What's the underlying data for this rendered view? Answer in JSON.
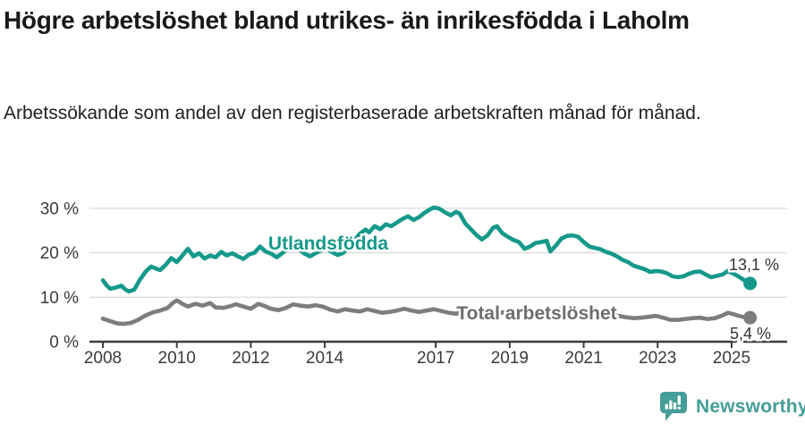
{
  "header": {
    "title": "Högre arbetslöshet bland utrikes- än inrikesfödda i Laholm",
    "subtitle": "Arbetssökande som andel av den registerbaserade arbetskraften månad för månad."
  },
  "branding": {
    "logo_text": "Newsworthy",
    "logo_icon": "newsworthy-bubble-chart-icon",
    "color": "#459e98"
  },
  "chart_data": {
    "type": "line",
    "title": "Högre arbetslöshet bland utrikes- än inrikesfödda i Laholm",
    "subtitle": "Arbetssökande som andel av den registerbaserade arbetskraften månad för månad.",
    "grid": "horizontal-only",
    "legend_position": "inline-labels-on-lines",
    "colors": {
      "grid": "#dcdcdc",
      "axis": "#3c3c3c",
      "tick_text": "#3b3b3b",
      "value_label_text": "#333333"
    },
    "x_axis": {
      "ticks": [
        2008,
        2010,
        2012,
        2014,
        2017,
        2019,
        2021,
        2023,
        2025
      ],
      "range_years": [
        2007.65,
        2026.5
      ]
    },
    "y_axis": {
      "tick_values": [
        0,
        10,
        20,
        30
      ],
      "tick_labels": [
        "0 %",
        "10 %",
        "20 %",
        "30 %"
      ],
      "ylim": [
        0,
        33
      ],
      "unit": "%"
    },
    "series": [
      {
        "id": "utlandsfodda",
        "name": "Utlandsfödda",
        "color": "#14998a",
        "label_color": "#14998a",
        "end_label": "13,1 %",
        "end_value": 13.1,
        "points": [
          [
            2008.0,
            13.8
          ],
          [
            2008.1,
            12.7
          ],
          [
            2008.2,
            11.9
          ],
          [
            2008.35,
            12.2
          ],
          [
            2008.5,
            12.6
          ],
          [
            2008.6,
            11.8
          ],
          [
            2008.7,
            11.3
          ],
          [
            2008.85,
            11.7
          ],
          [
            2009.0,
            13.9
          ],
          [
            2009.15,
            15.7
          ],
          [
            2009.3,
            16.9
          ],
          [
            2009.45,
            16.4
          ],
          [
            2009.55,
            16.1
          ],
          [
            2009.7,
            17.3
          ],
          [
            2009.85,
            18.8
          ],
          [
            2010.0,
            17.9
          ],
          [
            2010.15,
            19.4
          ],
          [
            2010.3,
            20.9
          ],
          [
            2010.45,
            19.2
          ],
          [
            2010.6,
            19.9
          ],
          [
            2010.75,
            18.7
          ],
          [
            2010.9,
            19.4
          ],
          [
            2011.05,
            19.0
          ],
          [
            2011.2,
            20.2
          ],
          [
            2011.35,
            19.4
          ],
          [
            2011.5,
            19.9
          ],
          [
            2011.65,
            19.2
          ],
          [
            2011.8,
            18.6
          ],
          [
            2011.95,
            19.6
          ],
          [
            2012.1,
            20.0
          ],
          [
            2012.25,
            21.4
          ],
          [
            2012.4,
            20.3
          ],
          [
            2012.55,
            19.8
          ],
          [
            2012.7,
            19.0
          ],
          [
            2012.85,
            19.9
          ],
          [
            2013.0,
            20.9
          ],
          [
            2013.15,
            21.7
          ],
          [
            2013.3,
            20.9
          ],
          [
            2013.45,
            19.8
          ],
          [
            2013.6,
            19.2
          ],
          [
            2013.75,
            19.9
          ],
          [
            2013.9,
            20.5
          ],
          [
            2014.05,
            21.0
          ],
          [
            2014.2,
            20.1
          ],
          [
            2014.35,
            19.5
          ],
          [
            2014.5,
            20.0
          ],
          [
            2014.65,
            21.3
          ],
          [
            2014.8,
            22.8
          ],
          [
            2014.95,
            24.3
          ],
          [
            2015.1,
            25.2
          ],
          [
            2015.2,
            24.6
          ],
          [
            2015.35,
            26.0
          ],
          [
            2015.5,
            25.3
          ],
          [
            2015.65,
            26.4
          ],
          [
            2015.8,
            26.0
          ],
          [
            2015.95,
            26.8
          ],
          [
            2016.1,
            27.6
          ],
          [
            2016.25,
            28.2
          ],
          [
            2016.4,
            27.4
          ],
          [
            2016.55,
            28.0
          ],
          [
            2016.7,
            29.0
          ],
          [
            2016.85,
            29.8
          ],
          [
            2016.95,
            30.2
          ],
          [
            2017.1,
            29.9
          ],
          [
            2017.25,
            29.1
          ],
          [
            2017.4,
            28.4
          ],
          [
            2017.55,
            29.2
          ],
          [
            2017.65,
            28.8
          ],
          [
            2017.8,
            26.6
          ],
          [
            2017.95,
            25.3
          ],
          [
            2018.1,
            24.0
          ],
          [
            2018.25,
            23.0
          ],
          [
            2018.4,
            23.9
          ],
          [
            2018.55,
            25.6
          ],
          [
            2018.65,
            26.0
          ],
          [
            2018.8,
            24.4
          ],
          [
            2018.95,
            23.6
          ],
          [
            2019.1,
            22.9
          ],
          [
            2019.25,
            22.4
          ],
          [
            2019.4,
            20.9
          ],
          [
            2019.55,
            21.4
          ],
          [
            2019.7,
            22.2
          ],
          [
            2019.85,
            22.4
          ],
          [
            2020.0,
            22.7
          ],
          [
            2020.1,
            20.3
          ],
          [
            2020.25,
            21.6
          ],
          [
            2020.4,
            23.2
          ],
          [
            2020.55,
            23.8
          ],
          [
            2020.7,
            23.9
          ],
          [
            2020.85,
            23.6
          ],
          [
            2021.0,
            22.4
          ],
          [
            2021.15,
            21.4
          ],
          [
            2021.3,
            21.1
          ],
          [
            2021.45,
            20.8
          ],
          [
            2021.6,
            20.2
          ],
          [
            2021.75,
            19.8
          ],
          [
            2021.9,
            19.2
          ],
          [
            2022.05,
            18.4
          ],
          [
            2022.2,
            17.9
          ],
          [
            2022.35,
            17.1
          ],
          [
            2022.5,
            16.7
          ],
          [
            2022.65,
            16.3
          ],
          [
            2022.8,
            15.7
          ],
          [
            2022.95,
            15.9
          ],
          [
            2023.1,
            15.8
          ],
          [
            2023.25,
            15.4
          ],
          [
            2023.4,
            14.7
          ],
          [
            2023.55,
            14.5
          ],
          [
            2023.7,
            14.7
          ],
          [
            2023.85,
            15.3
          ],
          [
            2024.0,
            15.7
          ],
          [
            2024.15,
            15.8
          ],
          [
            2024.3,
            15.1
          ],
          [
            2024.45,
            14.5
          ],
          [
            2024.6,
            14.8
          ],
          [
            2024.75,
            15.1
          ],
          [
            2024.9,
            15.9
          ],
          [
            2025.05,
            15.3
          ],
          [
            2025.2,
            14.6
          ],
          [
            2025.35,
            13.8
          ],
          [
            2025.5,
            13.1
          ]
        ]
      },
      {
        "id": "total",
        "name": "Total arbetslöshet",
        "color": "#7d7d7d",
        "label_color": "#6e6e6e",
        "end_label": "5,4 %",
        "end_value": 5.4,
        "points": [
          [
            2008.0,
            5.2
          ],
          [
            2008.2,
            4.6
          ],
          [
            2008.4,
            4.1
          ],
          [
            2008.55,
            4.0
          ],
          [
            2008.75,
            4.2
          ],
          [
            2008.95,
            4.9
          ],
          [
            2009.15,
            5.9
          ],
          [
            2009.35,
            6.6
          ],
          [
            2009.55,
            7.0
          ],
          [
            2009.75,
            7.6
          ],
          [
            2009.9,
            8.8
          ],
          [
            2010.0,
            9.3
          ],
          [
            2010.15,
            8.5
          ],
          [
            2010.3,
            7.9
          ],
          [
            2010.5,
            8.5
          ],
          [
            2010.7,
            8.1
          ],
          [
            2010.9,
            8.7
          ],
          [
            2011.05,
            7.7
          ],
          [
            2011.25,
            7.6
          ],
          [
            2011.45,
            8.0
          ],
          [
            2011.6,
            8.4
          ],
          [
            2011.8,
            7.9
          ],
          [
            2012.0,
            7.4
          ],
          [
            2012.2,
            8.5
          ],
          [
            2012.35,
            8.1
          ],
          [
            2012.55,
            7.4
          ],
          [
            2012.75,
            7.1
          ],
          [
            2012.95,
            7.6
          ],
          [
            2013.15,
            8.4
          ],
          [
            2013.35,
            8.1
          ],
          [
            2013.55,
            7.9
          ],
          [
            2013.75,
            8.2
          ],
          [
            2013.95,
            7.9
          ],
          [
            2014.15,
            7.2
          ],
          [
            2014.35,
            6.8
          ],
          [
            2014.55,
            7.3
          ],
          [
            2014.75,
            7.0
          ],
          [
            2014.95,
            6.8
          ],
          [
            2015.15,
            7.3
          ],
          [
            2015.35,
            6.9
          ],
          [
            2015.55,
            6.5
          ],
          [
            2015.75,
            6.7
          ],
          [
            2015.95,
            7.0
          ],
          [
            2016.15,
            7.4
          ],
          [
            2016.35,
            7.0
          ],
          [
            2016.55,
            6.7
          ],
          [
            2016.75,
            7.0
          ],
          [
            2016.95,
            7.3
          ],
          [
            2017.15,
            6.9
          ],
          [
            2017.35,
            6.5
          ],
          [
            2017.55,
            6.3
          ],
          [
            2017.75,
            6.6
          ],
          [
            2017.95,
            7.0
          ],
          [
            2018.15,
            7.4
          ],
          [
            2018.35,
            7.1
          ],
          [
            2018.55,
            6.8
          ],
          [
            2018.75,
            6.5
          ],
          [
            2018.95,
            6.8
          ],
          [
            2019.15,
            6.6
          ],
          [
            2019.35,
            6.4
          ],
          [
            2019.55,
            6.7
          ],
          [
            2019.75,
            6.5
          ],
          [
            2019.95,
            6.3
          ],
          [
            2020.15,
            6.9
          ],
          [
            2020.35,
            7.3
          ],
          [
            2020.55,
            7.1
          ],
          [
            2020.75,
            6.9
          ],
          [
            2020.95,
            7.1
          ],
          [
            2021.15,
            6.8
          ],
          [
            2021.35,
            6.5
          ],
          [
            2021.55,
            6.2
          ],
          [
            2021.75,
            6.0
          ],
          [
            2021.95,
            5.8
          ],
          [
            2022.15,
            5.5
          ],
          [
            2022.35,
            5.3
          ],
          [
            2022.55,
            5.4
          ],
          [
            2022.75,
            5.6
          ],
          [
            2022.95,
            5.8
          ],
          [
            2023.15,
            5.4
          ],
          [
            2023.35,
            4.9
          ],
          [
            2023.55,
            4.9
          ],
          [
            2023.75,
            5.1
          ],
          [
            2023.95,
            5.3
          ],
          [
            2024.15,
            5.4
          ],
          [
            2024.35,
            5.1
          ],
          [
            2024.55,
            5.3
          ],
          [
            2024.75,
            5.9
          ],
          [
            2024.9,
            6.5
          ],
          [
            2025.05,
            6.2
          ],
          [
            2025.2,
            5.8
          ],
          [
            2025.35,
            5.5
          ],
          [
            2025.5,
            5.4
          ]
        ]
      }
    ]
  }
}
